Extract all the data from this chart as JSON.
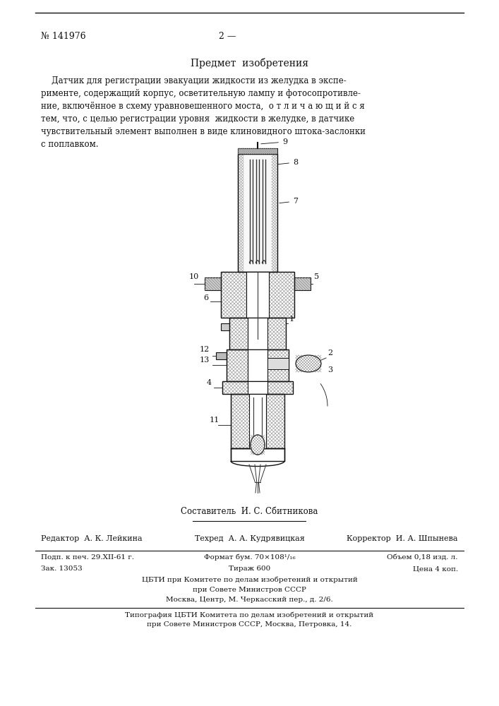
{
  "patent_number": "№ 141976",
  "page_number": "2 —",
  "section_title": "Предмет  изобретения",
  "body_text_lines": [
    "    Датчик для регистрации эвакуации жидкости из желудка в экспе-",
    "рименте, содержащий корпус, осветительную лампу и фотосопротивле-",
    "ние, включённое в схему уравновешенного моста,  о т л и ч а ю щ и й с я",
    "тем, что, с целью регистрации уровня  жидкости в желудке, в датчике",
    "чувствительный элемент выполнен в виде клиновидного штока-заслонки",
    "с поплавком."
  ],
  "compiler_text": "Составитель  И. С. Сбитникова",
  "editor_label": "Редактор  А. К. Лейкина",
  "techred_label": "Техред  А. А. Кудрявицкая",
  "corrector_label": "Корректор  И. А. Шпынева",
  "table_row1_col1": "Подп. к печ. 29.XII-61 г.",
  "table_row1_col2": "Формат бум. 70×108¹/₁₆",
  "table_row1_col3": "Объем 0,18 изд. л.",
  "table_row2_col1": "Зак. 13053",
  "table_row2_col2": "Тираж 600",
  "table_row2_col3": "Цена 4 коп.",
  "cbti_line1": "ЦБТИ при Комитете по делам изобретений и открытий",
  "cbti_line2": "при Совете Министров СССР",
  "cbti_line3": "Москва, Центр, М. Черкасский пер., д. 2/6.",
  "print_line1": "Типография ЦБТИ Комитета по делам изобретений и открытий",
  "print_line2": "при Совете Министров СССР, Москва, Петровка, 14.",
  "bg_color": "#ffffff",
  "text_color": "#111111"
}
